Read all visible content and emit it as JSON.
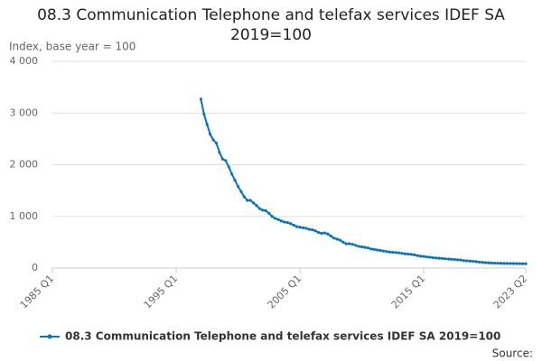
{
  "chart_data": {
    "type": "line",
    "title": "08.3 Communication Telephone and telefax services IDEF SA 2019=100",
    "y_axis_label": "Index, base year = 100",
    "source_label": "Source:",
    "categories": [
      "1985 Q1",
      null,
      null,
      null,
      null,
      null,
      null,
      null,
      null,
      null,
      null,
      null,
      null,
      null,
      null,
      null,
      null,
      null,
      null,
      null,
      null,
      null,
      null,
      null,
      null,
      null,
      null,
      null,
      null,
      null,
      null,
      null,
      null,
      null,
      null,
      null,
      null,
      null,
      null,
      null,
      "1995 Q1",
      null,
      null,
      null,
      null,
      null,
      null,
      null,
      null,
      null,
      null,
      null,
      null,
      null,
      null,
      null,
      null,
      null,
      null,
      null,
      null,
      null,
      null,
      null,
      null,
      null,
      null,
      null,
      null,
      null,
      null,
      null,
      null,
      null,
      null,
      null,
      null,
      null,
      null,
      null,
      "2005 Q1",
      null,
      null,
      null,
      null,
      null,
      null,
      null,
      null,
      null,
      null,
      null,
      null,
      null,
      null,
      null,
      null,
      null,
      null,
      null,
      null,
      null,
      null,
      null,
      null,
      null,
      null,
      null,
      null,
      null,
      null,
      null,
      null,
      null,
      null,
      null,
      null,
      null,
      null,
      null,
      "2015 Q1",
      null,
      null,
      null,
      null,
      null,
      null,
      null,
      null,
      null,
      null,
      null,
      null,
      null,
      null,
      null,
      null,
      null,
      null,
      null,
      null,
      null,
      null,
      null,
      null,
      null,
      null,
      null,
      null,
      null,
      null,
      null,
      null,
      "2023 Q2"
    ],
    "series": [
      {
        "name": "08.3 Communication Telephone and telefax services IDEF SA 2019=100",
        "color": "#0b74b8",
        "values": [
          null,
          null,
          null,
          null,
          null,
          null,
          null,
          null,
          null,
          null,
          null,
          null,
          null,
          null,
          null,
          null,
          null,
          null,
          null,
          null,
          null,
          null,
          null,
          null,
          null,
          null,
          null,
          null,
          null,
          null,
          null,
          null,
          null,
          null,
          null,
          null,
          null,
          null,
          null,
          null,
          null,
          null,
          null,
          null,
          null,
          null,
          null,
          null,
          3270,
          2980,
          2780,
          2590,
          2480,
          2420,
          2240,
          2110,
          2080,
          1960,
          1820,
          1700,
          1580,
          1480,
          1380,
          1310,
          1310,
          1260,
          1210,
          1150,
          1120,
          1110,
          1060,
          1000,
          960,
          940,
          910,
          890,
          880,
          860,
          830,
          800,
          790,
          780,
          770,
          750,
          740,
          720,
          690,
          670,
          680,
          660,
          620,
          580,
          560,
          540,
          500,
          470,
          470,
          460,
          440,
          420,
          410,
          400,
          390,
          370,
          360,
          350,
          340,
          330,
          320,
          310,
          305,
          300,
          295,
          285,
          275,
          270,
          265,
          255,
          240,
          230,
          225,
          215,
          210,
          200,
          195,
          190,
          185,
          180,
          175,
          170,
          165,
          160,
          155,
          145,
          140,
          135,
          130,
          125,
          115,
          110,
          105,
          100,
          98,
          95,
          93,
          92,
          90,
          89,
          88,
          87,
          86,
          85,
          84,
          84
        ]
      }
    ],
    "ylim": [
      0,
      4000
    ],
    "yticks": [
      0,
      {
        "value": 1000,
        "label": "1 000"
      },
      {
        "value": 2000,
        "label": "2 000"
      },
      {
        "value": 3000,
        "label": "3 000"
      },
      {
        "value": 4000,
        "label": "4 000"
      }
    ],
    "grid": true
  }
}
